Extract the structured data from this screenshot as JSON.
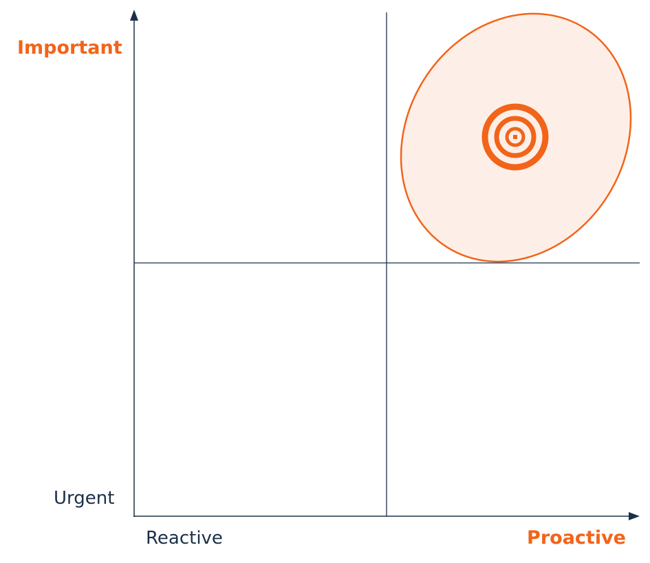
{
  "axes": {
    "y_top": "Important",
    "y_bottom": "Urgent",
    "x_left": "Reactive",
    "x_right": "Proactive"
  }
}
